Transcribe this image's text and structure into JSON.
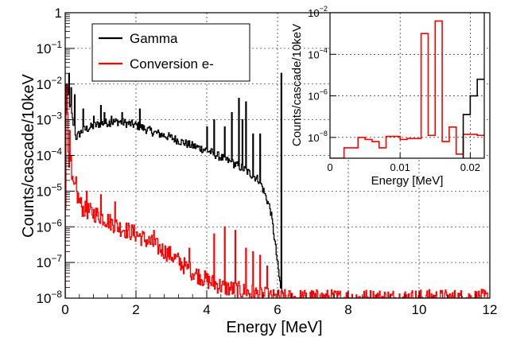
{
  "chart_data": [
    {
      "id": "main",
      "type": "line",
      "style": "histogram-step",
      "xlabel": "Energy [MeV]",
      "ylabel": "Counts/cascade/10keV",
      "xlim": [
        0,
        12
      ],
      "ylim_log10": [
        -8,
        0
      ],
      "yscale": "log",
      "grid": true,
      "x_ticks": [
        0,
        2,
        4,
        6,
        8,
        10,
        12
      ],
      "x_tick_labels": [
        "0",
        "2",
        "4",
        "6",
        "8",
        "10",
        "12"
      ],
      "y_ticks_log10": [
        0,
        -1,
        -2,
        -3,
        -4,
        -5,
        -6,
        -7,
        -8
      ],
      "y_tick_labels": [
        {
          "base": "1",
          "exp": ""
        },
        {
          "base": "10",
          "exp": "−1"
        },
        {
          "base": "10",
          "exp": "−2"
        },
        {
          "base": "10",
          "exp": "−3"
        },
        {
          "base": "10",
          "exp": "−4"
        },
        {
          "base": "10",
          "exp": "−5"
        },
        {
          "base": "10",
          "exp": "−6"
        },
        {
          "base": "10",
          "exp": "−7"
        },
        {
          "base": "10",
          "exp": "−8"
        }
      ],
      "legend": {
        "position": "top-left",
        "entries": [
          {
            "label": "Gamma",
            "color": "#000000"
          },
          {
            "label": "Conversion e-",
            "color": "#ff0000"
          }
        ]
      },
      "series": [
        {
          "name": "Gamma",
          "color": "#000000",
          "x_start": 0,
          "x_end": 6.2,
          "envelope_log10": [
            [
              0.0,
              -8
            ],
            [
              0.02,
              -1.9
            ],
            [
              0.1,
              -2.4
            ],
            [
              0.3,
              -3.5
            ],
            [
              0.5,
              -3.3
            ],
            [
              1.0,
              -3.1
            ],
            [
              1.5,
              -3.05
            ],
            [
              2.0,
              -3.15
            ],
            [
              2.5,
              -3.35
            ],
            [
              3.0,
              -3.5
            ],
            [
              3.5,
              -3.7
            ],
            [
              4.0,
              -3.85
            ],
            [
              4.5,
              -4.1
            ],
            [
              5.0,
              -4.35
            ],
            [
              5.5,
              -4.7
            ],
            [
              5.8,
              -5.5
            ],
            [
              5.9,
              -6.2
            ],
            [
              6.0,
              -7.0
            ],
            [
              6.1,
              -7.8
            ],
            [
              6.2,
              -8
            ]
          ],
          "spikes": [
            [
              0.1,
              -1.7
            ],
            [
              0.16,
              -2.1
            ],
            [
              0.25,
              -2.3
            ],
            [
              0.5,
              -2.7
            ],
            [
              0.8,
              -2.9
            ],
            [
              1.0,
              -2.6
            ],
            [
              1.1,
              -2.8
            ],
            [
              1.3,
              -2.9
            ],
            [
              1.6,
              -2.8
            ],
            [
              2.1,
              -2.7
            ],
            [
              4.0,
              -3.2
            ],
            [
              4.2,
              -3.0
            ],
            [
              4.5,
              -3.2
            ],
            [
              4.7,
              -2.8
            ],
            [
              4.9,
              -2.4
            ],
            [
              5.0,
              -3.0
            ],
            [
              5.1,
              -2.5
            ],
            [
              5.3,
              -3.4
            ],
            [
              5.5,
              -3.4
            ],
            [
              6.1,
              -1.7
            ]
          ],
          "noise": 0.12
        },
        {
          "name": "Conversion e-",
          "color": "#ff0000",
          "x_start": 0,
          "x_end": 12,
          "envelope_log10": [
            [
              0.0,
              -8
            ],
            [
              0.02,
              -2.5
            ],
            [
              0.1,
              -4.0
            ],
            [
              0.2,
              -4.8
            ],
            [
              0.5,
              -5.5
            ],
            [
              1.0,
              -5.7
            ],
            [
              1.5,
              -6.0
            ],
            [
              2.0,
              -6.2
            ],
            [
              2.5,
              -6.5
            ],
            [
              3.0,
              -6.8
            ],
            [
              3.5,
              -7.2
            ],
            [
              4.0,
              -7.5
            ],
            [
              4.5,
              -7.7
            ],
            [
              5.0,
              -7.8
            ],
            [
              5.5,
              -7.9
            ],
            [
              5.9,
              -8
            ],
            [
              12.0,
              -8
            ]
          ],
          "spikes": [
            [
              0.03,
              -2.0
            ],
            [
              0.06,
              -2.8
            ],
            [
              0.12,
              -3.3
            ],
            [
              0.15,
              -4.0
            ],
            [
              0.3,
              -4.6
            ],
            [
              0.6,
              -5.0
            ],
            [
              1.0,
              -5.1
            ],
            [
              1.4,
              -5.3
            ],
            [
              2.5,
              -6.1
            ],
            [
              3.5,
              -6.6
            ],
            [
              4.2,
              -6.2
            ],
            [
              4.5,
              -6.0
            ],
            [
              4.8,
              -6.1
            ],
            [
              5.1,
              -6.6
            ],
            [
              5.3,
              -6.7
            ],
            [
              5.5,
              -6.8
            ],
            [
              5.7,
              -7.1
            ]
          ],
          "noise": 0.25
        }
      ]
    },
    {
      "id": "inset",
      "type": "line",
      "style": "histogram-step",
      "xlabel": "Energy [MeV]",
      "ylabel": "Counts/cascade/10keV",
      "xlim": [
        0,
        0.022
      ],
      "ylim_log10": [
        -9,
        -2
      ],
      "yscale": "log",
      "grid": true,
      "bin_width": 0.001,
      "x_ticks": [
        0,
        0.01,
        0.02
      ],
      "x_tick_labels": [
        "0",
        "0.01",
        "0.02"
      ],
      "y_ticks_log10": [
        -2,
        -4,
        -6,
        -8
      ],
      "y_tick_labels": [
        {
          "base": "10",
          "exp": "−2"
        },
        {
          "base": "10",
          "exp": "−4"
        },
        {
          "base": "10",
          "exp": "−6"
        },
        {
          "base": "10",
          "exp": "−8"
        }
      ],
      "series": [
        {
          "name": "Conversion e-",
          "color": "#ff0000",
          "bins_log10": [
            -9,
            -9,
            -8.5,
            -8.5,
            -8.0,
            -8.1,
            -8.2,
            -8.5,
            -7.95,
            -7.95,
            -8.1,
            -8.05,
            -8.05,
            -3.0,
            -7.9,
            -2.4,
            -8.2,
            -7.5,
            -8.8,
            -7.85,
            -7.85,
            -7.9
          ]
        },
        {
          "name": "Gamma",
          "color": "#000000",
          "bins_log10": [
            null,
            null,
            null,
            null,
            null,
            null,
            null,
            null,
            null,
            null,
            null,
            null,
            null,
            null,
            null,
            null,
            null,
            null,
            null,
            -6.9,
            -6.0,
            -5.2
          ]
        }
      ]
    }
  ]
}
